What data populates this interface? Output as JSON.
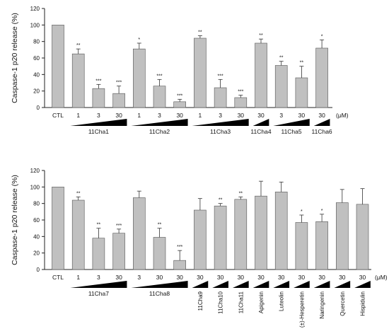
{
  "chart_data": [
    {
      "type": "bar",
      "ylabel": "Caspase-1 p20 release (%)",
      "ylim": [
        0,
        120
      ],
      "yticks": [
        0,
        20,
        40,
        60,
        80,
        100,
        120
      ],
      "unit": "(μM)",
      "categories": [
        "CTL",
        "1",
        "3",
        "30",
        "1",
        "3",
        "30",
        "1",
        "3",
        "30",
        "30",
        "3",
        "30",
        "30"
      ],
      "values": [
        100,
        65,
        23,
        17,
        71,
        26,
        7,
        84,
        24,
        12,
        78,
        51,
        36,
        72
      ],
      "errors": [
        0,
        6,
        5,
        9,
        7,
        8,
        3,
        3,
        10,
        3,
        5,
        5,
        14,
        10
      ],
      "sig": [
        "",
        "**",
        "***",
        "***",
        "*",
        "***",
        "***",
        "**",
        "***",
        "***",
        "**",
        "**",
        "**",
        "*"
      ],
      "groups": [
        {
          "label": "11Cha1",
          "start": 1,
          "end": 3,
          "ramp": true
        },
        {
          "label": "11Cha2",
          "start": 4,
          "end": 6,
          "ramp": true
        },
        {
          "label": "11Cha3",
          "start": 7,
          "end": 9,
          "ramp": true
        },
        {
          "label": "11Cha4",
          "start": 10,
          "end": 10,
          "ramp": true
        },
        {
          "label": "11Cha5",
          "start": 11,
          "end": 12,
          "ramp": true
        },
        {
          "label": "11Cha6",
          "start": 13,
          "end": 13,
          "ramp": true
        }
      ],
      "grid": false
    },
    {
      "type": "bar",
      "ylabel": "Caspase-1 p20 release (%)",
      "ylim": [
        0,
        120
      ],
      "yticks": [
        0,
        20,
        40,
        60,
        80,
        100,
        120
      ],
      "unit": "(μM)",
      "categories": [
        "CTL",
        "1",
        "3",
        "30",
        "3",
        "30",
        "30",
        "30",
        "30",
        "30",
        "30",
        "30",
        "30",
        "30",
        "30",
        "30"
      ],
      "values": [
        100,
        84,
        38,
        44,
        87,
        39,
        11,
        72,
        77,
        85,
        89,
        94,
        57,
        58,
        81,
        79
      ],
      "errors": [
        0,
        4,
        12,
        5,
        8,
        11,
        12,
        14,
        3,
        3,
        18,
        12,
        9,
        9,
        16,
        19
      ],
      "sig": [
        "",
        "**",
        "**",
        "***",
        "",
        "**",
        "***",
        "",
        "**",
        "**",
        "",
        "",
        "*",
        "*",
        "",
        ""
      ],
      "groups": [
        {
          "label": "11Cha7",
          "start": 1,
          "end": 3,
          "ramp": true
        },
        {
          "label": "11Cha8",
          "start": 4,
          "end": 6,
          "ramp": true
        },
        {
          "label": "11Cha9",
          "start": 7,
          "end": 7,
          "ramp": true,
          "vertical": true
        },
        {
          "label": "11Cha10",
          "start": 8,
          "end": 8,
          "ramp": true,
          "vertical": true
        },
        {
          "label": "11Cha11",
          "start": 9,
          "end": 9,
          "ramp": true,
          "vertical": true
        },
        {
          "label": "Apigenin",
          "start": 10,
          "end": 10,
          "ramp": true,
          "vertical": true
        },
        {
          "label": "Luteolin",
          "start": 11,
          "end": 11,
          "ramp": true,
          "vertical": true
        },
        {
          "label": "(±)-Hesperetin",
          "start": 12,
          "end": 12,
          "ramp": true,
          "vertical": true
        },
        {
          "label": "Naringenin",
          "start": 13,
          "end": 13,
          "ramp": true,
          "vertical": true
        },
        {
          "label": "Quercetin",
          "start": 14,
          "end": 14,
          "ramp": true,
          "vertical": true
        },
        {
          "label": "Hispidulin",
          "start": 15,
          "end": 15,
          "ramp": true,
          "vertical": true
        }
      ],
      "grid": false
    }
  ]
}
